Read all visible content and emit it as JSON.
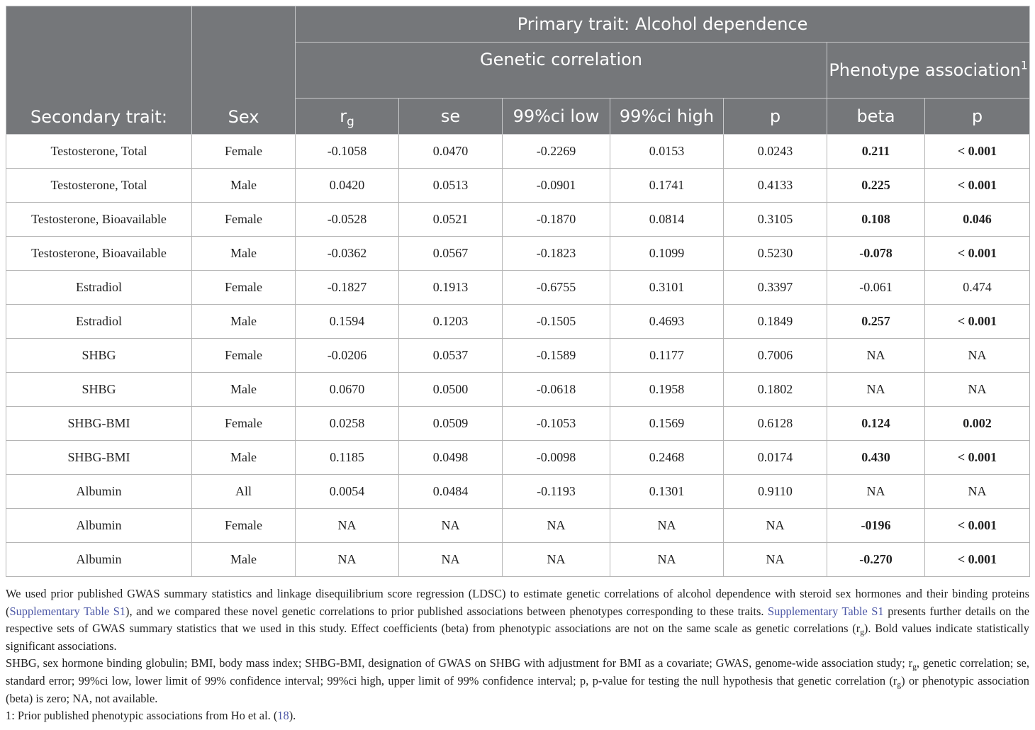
{
  "header": {
    "secondary_trait": "Secondary trait:",
    "sex": "Sex",
    "primary_trait": "Primary trait: Alcohol dependence",
    "genetic_correlation": "Genetic correlation",
    "phenotype_association": "Phenotype association",
    "phenotype_association_sup": "1",
    "columns": {
      "rg_base": "r",
      "rg_sub": "g",
      "se": "se",
      "ci_low": "99%ci low",
      "ci_high": "99%ci high",
      "p": "p",
      "beta": "beta",
      "p2": "p"
    }
  },
  "rows": [
    {
      "trait": "Testosterone, Total",
      "sex": "Female",
      "rg": "-0.1058",
      "se": "0.0470",
      "ci_low": "-0.2269",
      "ci_high": "0.0153",
      "p": "0.0243",
      "beta": "0.211",
      "p2": "< 0.001",
      "beta_bold": true,
      "p2_bold": true
    },
    {
      "trait": "Testosterone, Total",
      "sex": "Male",
      "rg": "0.0420",
      "se": "0.0513",
      "ci_low": "-0.0901",
      "ci_high": "0.1741",
      "p": "0.4133",
      "beta": "0.225",
      "p2": "< 0.001",
      "beta_bold": true,
      "p2_bold": true
    },
    {
      "trait": "Testosterone, Bioavailable",
      "sex": "Female",
      "rg": "-0.0528",
      "se": "0.0521",
      "ci_low": "-0.1870",
      "ci_high": "0.0814",
      "p": "0.3105",
      "beta": "0.108",
      "p2": "0.046",
      "beta_bold": true,
      "p2_bold": true
    },
    {
      "trait": "Testosterone, Bioavailable",
      "sex": "Male",
      "rg": "-0.0362",
      "se": "0.0567",
      "ci_low": "-0.1823",
      "ci_high": "0.1099",
      "p": "0.5230",
      "beta": "-0.078",
      "p2": "< 0.001",
      "beta_bold": true,
      "p2_bold": true
    },
    {
      "trait": "Estradiol",
      "sex": "Female",
      "rg": "-0.1827",
      "se": "0.1913",
      "ci_low": "-0.6755",
      "ci_high": "0.3101",
      "p": "0.3397",
      "beta": "-0.061",
      "p2": "0.474",
      "beta_bold": false,
      "p2_bold": false
    },
    {
      "trait": "Estradiol",
      "sex": "Male",
      "rg": "0.1594",
      "se": "0.1203",
      "ci_low": "-0.1505",
      "ci_high": "0.4693",
      "p": "0.1849",
      "beta": "0.257",
      "p2": "< 0.001",
      "beta_bold": true,
      "p2_bold": true
    },
    {
      "trait": "SHBG",
      "sex": "Female",
      "rg": "-0.0206",
      "se": "0.0537",
      "ci_low": "-0.1589",
      "ci_high": "0.1177",
      "p": "0.7006",
      "beta": "NA",
      "p2": "NA",
      "beta_bold": false,
      "p2_bold": false
    },
    {
      "trait": "SHBG",
      "sex": "Male",
      "rg": "0.0670",
      "se": "0.0500",
      "ci_low": "-0.0618",
      "ci_high": "0.1958",
      "p": "0.1802",
      "beta": "NA",
      "p2": "NA",
      "beta_bold": false,
      "p2_bold": false
    },
    {
      "trait": "SHBG-BMI",
      "sex": "Female",
      "rg": "0.0258",
      "se": "0.0509",
      "ci_low": "-0.1053",
      "ci_high": "0.1569",
      "p": "0.6128",
      "beta": "0.124",
      "p2": "0.002",
      "beta_bold": true,
      "p2_bold": true
    },
    {
      "trait": "SHBG-BMI",
      "sex": "Male",
      "rg": "0.1185",
      "se": "0.0498",
      "ci_low": "-0.0098",
      "ci_high": "0.2468",
      "p": "0.0174",
      "beta": "0.430",
      "p2": "< 0.001",
      "beta_bold": true,
      "p2_bold": true
    },
    {
      "trait": "Albumin",
      "sex": "All",
      "rg": "0.0054",
      "se": "0.0484",
      "ci_low": "-0.1193",
      "ci_high": "0.1301",
      "p": "0.9110",
      "beta": "NA",
      "p2": "NA",
      "beta_bold": false,
      "p2_bold": false
    },
    {
      "trait": "Albumin",
      "sex": "Female",
      "rg": "NA",
      "se": "NA",
      "ci_low": "NA",
      "ci_high": "NA",
      "p": "NA",
      "beta": "-0196",
      "p2": "< 0.001",
      "beta_bold": true,
      "p2_bold": true
    },
    {
      "trait": "Albumin",
      "sex": "Male",
      "rg": "NA",
      "se": "NA",
      "ci_low": "NA",
      "ci_high": "NA",
      "p": "NA",
      "beta": "-0.270",
      "p2": "< 0.001",
      "beta_bold": true,
      "p2_bold": true
    }
  ],
  "notes": {
    "p1_a": "We used prior published GWAS summary statistics and linkage disequilibrium score regression (LDSC) to estimate genetic correlations of alcohol dependence with steroid sex hormones and their binding proteins (",
    "p1_link1": "Supplementary Table S1",
    "p1_b": "), and we compared these novel genetic correlations to prior published associations between phenotypes corresponding to these traits. ",
    "p1_link2": "Supplementary Table S1",
    "p1_c": " presents further details on the respective sets of GWAS summary statistics that we used in this study. Effect coefficients (beta) from phenotypic associations are not on the same scale as genetic correlations (r",
    "p1_sub": "g",
    "p1_d": "). Bold values indicate statistically significant associations.",
    "p2_a": "SHBG, sex hormone binding globulin; BMI, body mass index; SHBG-BMI, designation of GWAS on SHBG with adjustment for BMI as a covariate; GWAS, genome-wide association study; r",
    "p2_sub1": "g",
    "p2_b": ", genetic correlation; se, standard error; 99%ci low, lower limit of 99% confidence interval; 99%ci high, upper limit of 99% confidence interval; p, p-value for testing the null hypothesis that genetic correlation (r",
    "p2_sub2": "g",
    "p2_c": ") or phenotypic association (beta) is zero; NA, not available.",
    "p3_a": "1: Prior published phenotypic associations from Ho et al. (",
    "p3_link": "18",
    "p3_b": ")."
  }
}
